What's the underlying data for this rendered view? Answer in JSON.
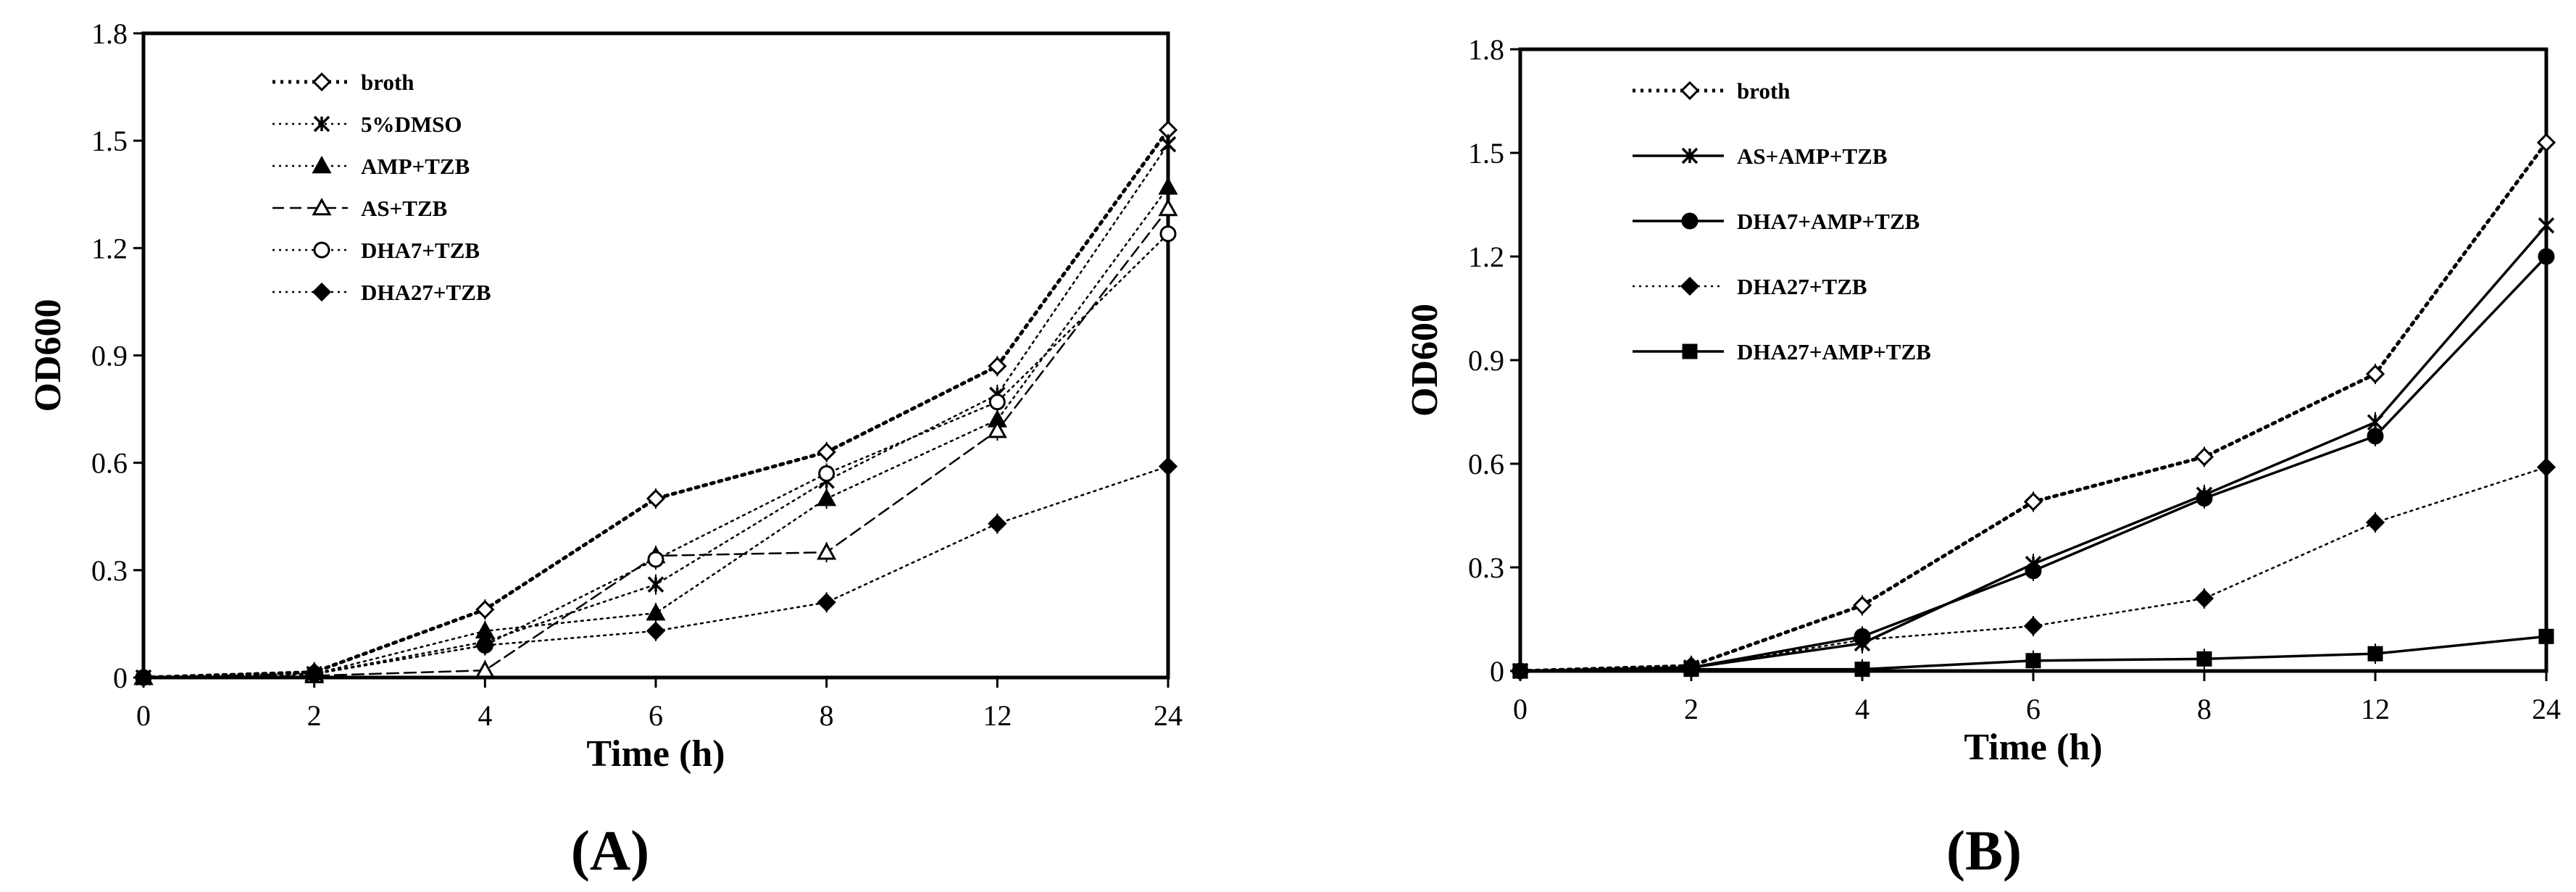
{
  "chart_data": [
    {
      "type": "line",
      "panel_label": "(A)",
      "xlabel": "Time (h)",
      "ylabel": "OD600",
      "categories": [
        "0",
        "2",
        "4",
        "6",
        "8",
        "12",
        "24"
      ],
      "ylim": [
        0,
        1.8
      ],
      "yticks": [
        "0",
        "0.3",
        "0.6",
        "0.9",
        "1.2",
        "1.5",
        "1.8"
      ],
      "grid": false,
      "legend_position": "top-left",
      "series": [
        {
          "name": "broth",
          "marker": "diamond-open",
          "dash": "dot-bold",
          "values": [
            0.0,
            0.015,
            0.19,
            0.5,
            0.63,
            0.87,
            1.53
          ]
        },
        {
          "name": "5%DMSO",
          "marker": "asterisk",
          "dash": "dot",
          "values": [
            0.0,
            0.01,
            0.1,
            0.26,
            0.55,
            0.79,
            1.49
          ]
        },
        {
          "name": "AMP+TZB",
          "marker": "triangle-filled",
          "dash": "dot",
          "values": [
            0.0,
            0.01,
            0.13,
            0.18,
            0.5,
            0.72,
            1.37
          ]
        },
        {
          "name": "AS+TZB",
          "marker": "triangle-open",
          "dash": "dash",
          "values": [
            0.0,
            0.005,
            0.02,
            0.34,
            0.35,
            0.69,
            1.31
          ]
        },
        {
          "name": "DHA7+TZB",
          "marker": "circle-open",
          "dash": "dot",
          "values": [
            0.0,
            0.01,
            0.09,
            0.33,
            0.57,
            0.77,
            1.24
          ]
        },
        {
          "name": "DHA27+TZB",
          "marker": "diamond-filled",
          "dash": "dot",
          "values": [
            0.0,
            0.01,
            0.09,
            0.13,
            0.21,
            0.43,
            0.59
          ]
        }
      ]
    },
    {
      "type": "line",
      "panel_label": "(B)",
      "xlabel": "Time (h)",
      "ylabel": "OD600",
      "categories": [
        "0",
        "2",
        "4",
        "6",
        "8",
        "12",
        "24"
      ],
      "ylim": [
        0,
        1.8
      ],
      "yticks": [
        "0",
        "0.3",
        "0.6",
        "0.9",
        "1.2",
        "1.5",
        "1.8"
      ],
      "grid": false,
      "legend_position": "top-left",
      "series": [
        {
          "name": "broth",
          "marker": "diamond-open",
          "dash": "dot-bold",
          "values": [
            0.0,
            0.015,
            0.19,
            0.49,
            0.62,
            0.86,
            1.53
          ]
        },
        {
          "name": "AS+AMP+TZB",
          "marker": "asterisk",
          "dash": "solid",
          "values": [
            0.0,
            0.01,
            0.08,
            0.31,
            0.51,
            0.72,
            1.29
          ]
        },
        {
          "name": "DHA7+AMP+TZB",
          "marker": "circle-filled",
          "dash": "solid",
          "values": [
            0.0,
            0.01,
            0.1,
            0.29,
            0.5,
            0.68,
            1.2
          ]
        },
        {
          "name": "DHA27+TZB",
          "marker": "diamond-filled",
          "dash": "dot",
          "values": [
            0.0,
            0.01,
            0.09,
            0.13,
            0.21,
            0.43,
            0.59
          ]
        },
        {
          "name": "DHA27+AMP+TZB",
          "marker": "square-filled",
          "dash": "solid",
          "values": [
            0.0,
            0.005,
            0.005,
            0.03,
            0.035,
            0.05,
            0.1
          ]
        }
      ]
    }
  ]
}
